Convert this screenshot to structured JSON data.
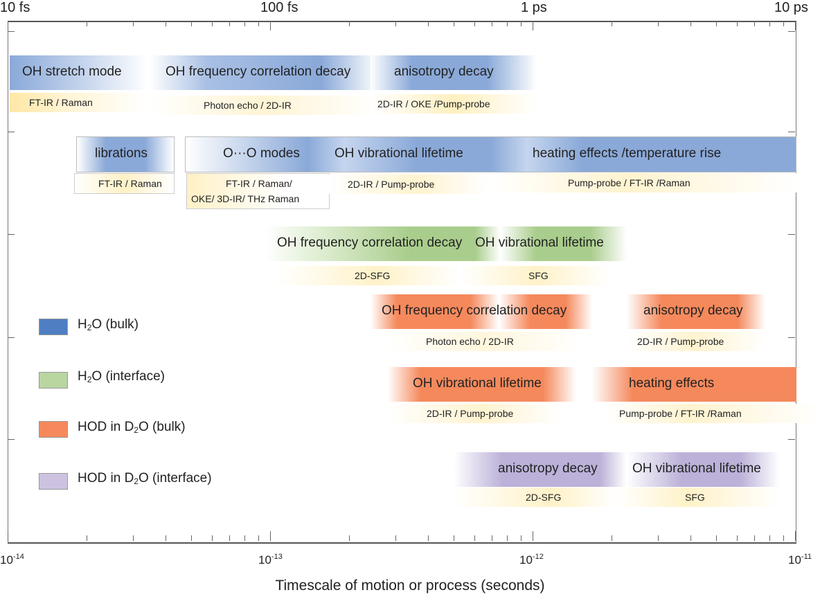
{
  "top_axis": [
    "10 fs",
    "100 fs",
    "1 ps",
    "10 ps"
  ],
  "bottom_axis": {
    "base": "10",
    "exponents": [
      "-14",
      "-13",
      "-12",
      "-11"
    ]
  },
  "axis_title": "Timescale of motion or process (seconds)",
  "colors": {
    "bulk_h2o": "#8aa9d8",
    "interface_h2o": "#a9cd8c",
    "hod_bulk": "#f5895c",
    "hod_interface": "#bcb1d8",
    "method": "#ffe7a6"
  },
  "rows": {
    "r1": {
      "oh_stretch": "OH stretch mode",
      "oh_freq": "OH frequency correlation decay",
      "aniso": "anisotropy decay",
      "m1": "FT-IR  / Raman",
      "m2": "Photon echo / 2D-IR",
      "m3": "2D-IR / OKE /Pump-probe"
    },
    "r2": {
      "librations": "librations",
      "oo_modes": "O···O modes",
      "oh_life": "OH vibrational lifetime",
      "heating": "heating effects /temperature rise",
      "m1": "FT-IR  / Raman",
      "m2a": "FT-IR  / Raman/",
      "m2b": "OKE/  3D-IR/ THz  Raman",
      "m3": "2D-IR / Pump-probe",
      "m4": "Pump-probe  / FT-IR  /Raman"
    },
    "r3": {
      "oh_freq": "OH frequency correlation decay",
      "oh_life": "OH vibrational lifetime",
      "m1": "2D-SFG",
      "m2": "SFG"
    },
    "r4": {
      "oh_freq": "OH frequency correlation decay",
      "aniso": "anisotropy decay",
      "m1": "Photon echo  / 2D-IR",
      "m2": "2D-IR / Pump-probe"
    },
    "r5": {
      "oh_life": "OH vibrational lifetime",
      "heating": "heating effects",
      "m1": "2D-IR / Pump-probe",
      "m2": "Pump-probe  / FT-IR  /Raman"
    },
    "r6": {
      "aniso": "anisotropy decay",
      "oh_life": "OH vibrational lifetime",
      "m1": "2D-SFG",
      "m2": "SFG"
    }
  },
  "legend": [
    {
      "pre": "H",
      "sub": "2",
      "post": "O (bulk)"
    },
    {
      "pre": "H",
      "sub": "2",
      "post": "O (interface)"
    },
    {
      "pre": "HOD in D",
      "sub": "2",
      "post": "O (bulk)"
    },
    {
      "pre": "HOD in D",
      "sub": "2",
      "post": "O (interface)"
    }
  ]
}
